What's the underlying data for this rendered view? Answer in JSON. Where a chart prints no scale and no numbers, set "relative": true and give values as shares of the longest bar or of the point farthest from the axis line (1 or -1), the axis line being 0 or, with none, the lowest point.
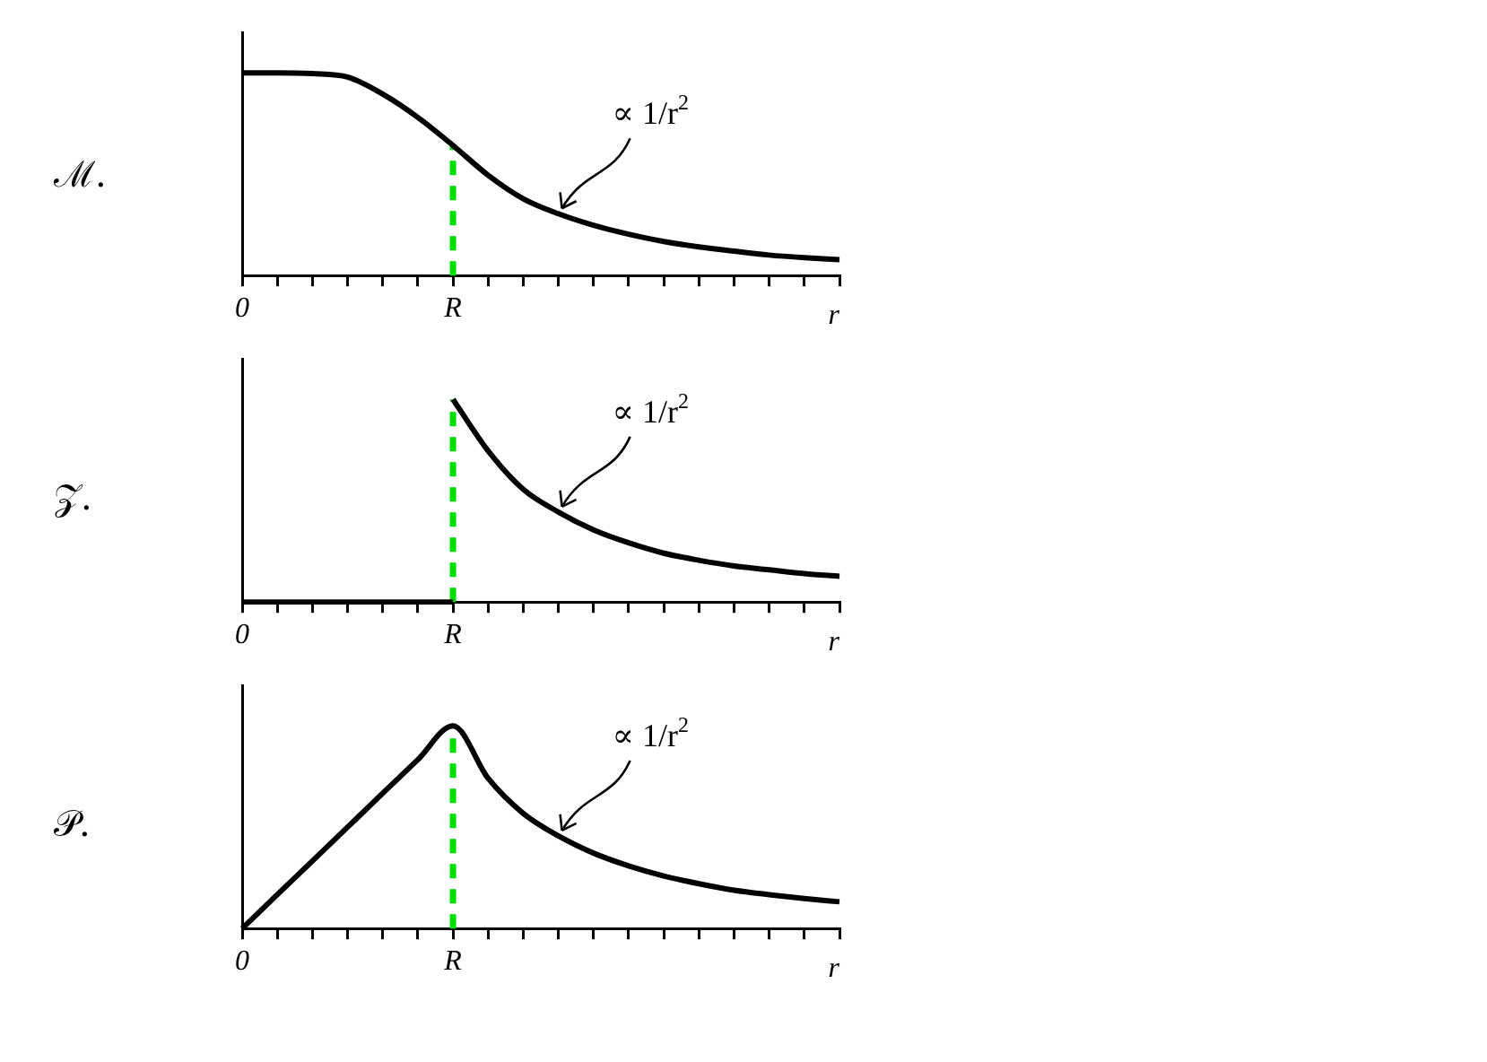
{
  "chart_data": [
    {
      "type": "line",
      "title": "ℳ.",
      "xlabel": "r",
      "relative": true,
      "categories": [
        "0",
        null,
        null,
        null,
        null,
        null,
        "R",
        null,
        null,
        null,
        null,
        null,
        null,
        null,
        null,
        null,
        null,
        null
      ],
      "series": [
        {
          "type": "line",
          "color": "#000000",
          "line_style": "solid",
          "values": [
            1,
            1,
            0.996,
            0.979,
            0.895,
            0.78,
            0.642,
            0.495,
            0.379,
            0.305,
            0.248,
            0.204,
            0.168,
            0.141,
            0.12,
            0.101,
            0.088,
            0.078
          ]
        }
      ],
      "ref_lines": [
        {
          "axis": "x",
          "value": "R",
          "color": "#00e000",
          "line_style": "dashed"
        }
      ],
      "annotations": [
        "∝ 1/r$^{2}$"
      ]
    },
    {
      "type": "line",
      "title": "𝒵.",
      "xlabel": "r",
      "relative": true,
      "categories": [
        "0",
        null,
        null,
        null,
        null,
        null,
        "R",
        null,
        null,
        null,
        null,
        null,
        null,
        null,
        null,
        null,
        null,
        null
      ],
      "series": [
        {
          "type": "line",
          "color": "#000000",
          "line_style": "solid",
          "values": [
            0,
            0,
            0,
            0,
            0,
            0,
            0,
            null,
            null,
            null,
            null,
            null,
            null,
            null,
            null,
            null,
            null,
            null
          ]
        },
        {
          "type": "line",
          "color": "#000000",
          "line_style": "solid",
          "values": [
            null,
            null,
            null,
            null,
            null,
            null,
            1,
            0.746,
            0.556,
            0.444,
            0.356,
            0.292,
            0.241,
            0.206,
            0.178,
            0.159,
            0.14,
            0.127
          ]
        }
      ],
      "ref_lines": [
        {
          "axis": "x",
          "value": "R",
          "color": "#00e000",
          "line_style": "dashed"
        }
      ],
      "annotations": [
        "∝ 1/r$^{2}$"
      ]
    },
    {
      "type": "line",
      "title": "𝒫.",
      "xlabel": "r",
      "relative": true,
      "categories": [
        "0",
        null,
        null,
        null,
        null,
        null,
        "R",
        null,
        null,
        null,
        null,
        null,
        null,
        null,
        null,
        null,
        null,
        null
      ],
      "series": [
        {
          "type": "line",
          "color": "#000000",
          "line_style": "solid",
          "values": [
            0,
            0.167,
            0.333,
            0.5,
            0.667,
            0.833,
            1,
            0.741,
            0.568,
            0.457,
            0.372,
            0.309,
            0.259,
            0.221,
            0.189,
            0.167,
            0.148,
            0.132
          ]
        }
      ],
      "ref_lines": [
        {
          "axis": "x",
          "value": "R",
          "color": "#00e000",
          "line_style": "dashed"
        }
      ],
      "annotations": [
        "∝ 1/r$^{2}$"
      ]
    }
  ]
}
